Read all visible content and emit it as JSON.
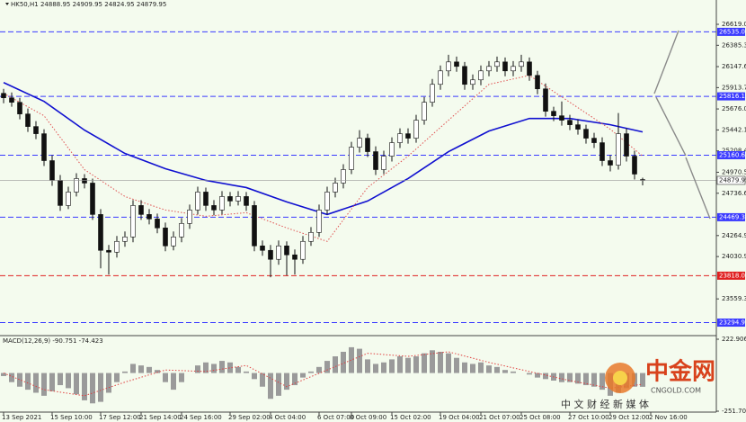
{
  "chart_data": [
    {
      "type": "candlestick",
      "title": "HK50,H1",
      "xlim": [
        0,
        88
      ],
      "xticks": [
        {
          "value": 0,
          "label": "13 Sep 2021"
        },
        {
          "value": 6,
          "label": "15 Sep 10:00"
        },
        {
          "value": 12,
          "label": "17 Sep 12:00"
        },
        {
          "value": 17,
          "label": "21 Sep 14:00"
        },
        {
          "value": 22,
          "label": "24 Sep 16:00"
        },
        {
          "value": 28,
          "label": "29 Sep 02:00"
        },
        {
          "value": 33,
          "label": "4 Oct 04:00"
        },
        {
          "value": 39,
          "label": "6 Oct 07:00"
        },
        {
          "value": 43,
          "label": "8 Oct 09:00"
        },
        {
          "value": 48,
          "label": "15 Oct 02:00"
        },
        {
          "value": 54,
          "label": "19 Oct 04:00"
        },
        {
          "value": 59,
          "label": "21 Oct 07:00"
        },
        {
          "value": 64,
          "label": "25 Oct 08:00"
        },
        {
          "value": 70,
          "label": "27 Oct 10:00"
        },
        {
          "value": 75,
          "label": "29 Oct 12:00"
        },
        {
          "value": 80,
          "label": "2 Nov 16:00"
        }
      ],
      "ylim": [
        23160,
        26890
      ],
      "yticks": [
        {
          "value": 26619,
          "label": "26619.00"
        },
        {
          "value": 26385.3,
          "label": "26385.30"
        },
        {
          "value": 26147.6,
          "label": "26147.60"
        },
        25913.7,
        {
          "value": 25676,
          "label": "25676.00"
        },
        25442.1,
        {
          "value": 25208.4,
          "label": "25208.40"
        },
        {
          "value": 24970.5,
          "label": "24970.50"
        },
        {
          "value": 24736.6,
          "label": "24736.60"
        },
        {
          "value": 24264.9,
          "label": "24264.90"
        },
        {
          "value": 24030.9,
          "label": "24030.90"
        },
        {
          "value": 23559.3,
          "label": "23559.30"
        }
      ],
      "ohlc": [
        [
          25850,
          25900,
          25740,
          25800
        ],
        [
          25800,
          25860,
          25700,
          25750
        ],
        [
          25750,
          25800,
          25560,
          25620
        ],
        [
          25620,
          25680,
          25420,
          25480
        ],
        [
          25480,
          25540,
          25340,
          25400
        ],
        [
          25400,
          25450,
          25040,
          25100
        ],
        [
          25100,
          25160,
          24820,
          24880
        ],
        [
          24880,
          24940,
          24540,
          24600
        ],
        [
          24600,
          24810,
          24560,
          24750
        ],
        [
          24750,
          24960,
          24700,
          24900
        ],
        [
          24900,
          24950,
          24790,
          24850
        ],
        [
          24850,
          24900,
          24440,
          24500
        ],
        [
          24500,
          24560,
          23900,
          24100
        ],
        [
          24100,
          24160,
          23830,
          24080
        ],
        [
          24080,
          24260,
          24020,
          24200
        ],
        [
          24200,
          24310,
          24140,
          24250
        ],
        [
          24250,
          24660,
          24190,
          24600
        ],
        [
          24600,
          24660,
          24440,
          24500
        ],
        [
          24500,
          24560,
          24390,
          24450
        ],
        [
          24450,
          24510,
          24290,
          24350
        ],
        [
          24350,
          24410,
          24090,
          24150
        ],
        [
          24150,
          24310,
          24100,
          24250
        ],
        [
          24250,
          24460,
          24190,
          24400
        ],
        [
          24400,
          24610,
          24340,
          24550
        ],
        [
          24550,
          24810,
          24500,
          24750
        ],
        [
          24750,
          24800,
          24540,
          24600
        ],
        [
          24600,
          24660,
          24490,
          24550
        ],
        [
          24550,
          24760,
          24500,
          24700
        ],
        [
          24700,
          24750,
          24590,
          24650
        ],
        [
          24650,
          24760,
          24600,
          24700
        ],
        [
          24700,
          24750,
          24540,
          24600
        ],
        [
          24600,
          24650,
          24090,
          24150
        ],
        [
          24150,
          24210,
          24040,
          24100
        ],
        [
          24100,
          24160,
          23800,
          24000
        ],
        [
          24000,
          24210,
          23940,
          24150
        ],
        [
          24150,
          24200,
          23820,
          24050
        ],
        [
          24050,
          24110,
          23830,
          24000
        ],
        [
          24000,
          24260,
          23950,
          24200
        ],
        [
          24200,
          24360,
          24150,
          24300
        ],
        [
          24300,
          24610,
          24250,
          24550
        ],
        [
          24550,
          24810,
          24500,
          24750
        ],
        [
          24750,
          24910,
          24690,
          24850
        ],
        [
          24850,
          25060,
          24790,
          25000
        ],
        [
          25000,
          25310,
          24950,
          25250
        ],
        [
          25250,
          25440,
          25190,
          25350
        ],
        [
          25350,
          25400,
          25140,
          25200
        ],
        [
          25200,
          25260,
          24940,
          25000
        ],
        [
          25000,
          25210,
          24950,
          25150
        ],
        [
          25150,
          25360,
          25090,
          25300
        ],
        [
          25300,
          25460,
          25240,
          25400
        ],
        [
          25400,
          25460,
          25290,
          25350
        ],
        [
          25350,
          25610,
          25300,
          25550
        ],
        [
          25550,
          25810,
          25500,
          25750
        ],
        [
          25750,
          26010,
          25700,
          25950
        ],
        [
          25950,
          26160,
          25890,
          26100
        ],
        [
          26100,
          26280,
          26040,
          26200
        ],
        [
          26200,
          26260,
          26090,
          26150
        ],
        [
          26150,
          26200,
          25890,
          25950
        ],
        [
          25950,
          26060,
          25890,
          26000
        ],
        [
          26000,
          26160,
          25940,
          26100
        ],
        [
          26100,
          26210,
          26040,
          26150
        ],
        [
          26150,
          26260,
          26090,
          26200
        ],
        [
          26200,
          26250,
          26040,
          26100
        ],
        [
          26100,
          26210,
          26040,
          26150
        ],
        [
          26150,
          26280,
          26090,
          26200
        ],
        [
          26200,
          26250,
          25990,
          26050
        ],
        [
          26050,
          26100,
          25840,
          25900
        ],
        [
          25900,
          25960,
          25590,
          25650
        ],
        [
          25650,
          25700,
          25540,
          25600
        ],
        [
          25600,
          25760,
          25490,
          25550
        ],
        [
          25550,
          25610,
          25440,
          25500
        ],
        [
          25500,
          25560,
          25390,
          25450
        ],
        [
          25450,
          25500,
          25290,
          25350
        ],
        [
          25350,
          25410,
          25240,
          25300
        ],
        [
          25300,
          25360,
          25040,
          25100
        ],
        [
          25100,
          25160,
          24980,
          25050
        ],
        [
          25050,
          25630,
          25000,
          25400
        ],
        [
          25400,
          25460,
          25090,
          25150
        ],
        [
          25150,
          25210,
          24890,
          24950
        ],
        [
          24888.95,
          24909.95,
          24824.95,
          24879.95
        ]
      ],
      "series": [
        {
          "color": "#1010d0",
          "dashed": false,
          "x": [
            0,
            5,
            10,
            15,
            20,
            25,
            30,
            35,
            40,
            45,
            50,
            55,
            60,
            65,
            70,
            75,
            79
          ],
          "values": [
            25970,
            25760,
            25440,
            25180,
            25010,
            24880,
            24800,
            24640,
            24500,
            24650,
            24900,
            25200,
            25430,
            25570,
            25570,
            25500,
            25420
          ]
        },
        {
          "color": "#e05050",
          "dashed": true,
          "x": [
            0,
            5,
            10,
            15,
            20,
            25,
            30,
            35,
            40,
            45,
            50,
            55,
            60,
            65,
            70,
            75,
            79
          ],
          "values": [
            25850,
            25600,
            25000,
            24700,
            24550,
            24480,
            24520,
            24350,
            24200,
            24800,
            25150,
            25550,
            25950,
            26050,
            25750,
            25450,
            25150
          ]
        }
      ],
      "levels": [
        {
          "value": 26535,
          "label": "26535.00",
          "color": "#3a3aff"
        },
        {
          "value": 25816.19,
          "label": "25816.19",
          "color": "#3a3aff"
        },
        {
          "value": 25160.63,
          "label": "25160.63",
          "color": "#3a3aff"
        },
        {
          "value": 24469.38,
          "label": "24469.38",
          "color": "#3a3aff"
        },
        {
          "value": 23818,
          "label": "23818.00",
          "color": "#e02020"
        },
        {
          "value": 23294.97,
          "label": "23294.97",
          "color": "#3a3aff"
        }
      ]
    },
    {
      "type": "macd",
      "title": "MACD(12,26,9)",
      "xlim": [
        0,
        88
      ],
      "ylim": [
        -251.706,
        222.906
      ],
      "yticks": [
        222.906,
        -251.706
      ],
      "color": "#9a9a9a",
      "values": [
        -20,
        -60,
        -90,
        -110,
        -130,
        -150,
        -120,
        -80,
        -100,
        -140,
        -180,
        -200,
        -190,
        -130,
        -60,
        10,
        60,
        50,
        40,
        20,
        -60,
        -110,
        -60,
        0,
        50,
        70,
        60,
        80,
        70,
        40,
        10,
        -40,
        -90,
        -170,
        -150,
        -110,
        -80,
        -30,
        10,
        40,
        80,
        110,
        140,
        170,
        160,
        90,
        60,
        70,
        90,
        110,
        100,
        110,
        130,
        150,
        140,
        130,
        100,
        70,
        60,
        70,
        50,
        40,
        20,
        10,
        0,
        -10,
        -30,
        -40,
        -50,
        -60,
        -60,
        -70,
        -80,
        -90,
        -110,
        -150,
        -130,
        -100,
        -90,
        -90.751
      ],
      "signal": {
        "color": "#e04040",
        "x": [
          0,
          5,
          10,
          15,
          20,
          25,
          30,
          35,
          40,
          45,
          50,
          55,
          60,
          65,
          70,
          75,
          79
        ],
        "values": [
          0,
          -110,
          -150,
          -60,
          20,
          10,
          50,
          -90,
          20,
          130,
          110,
          140,
          70,
          10,
          -50,
          -100,
          -74.423
        ]
      }
    }
  ],
  "watermark": {
    "name": "中金网",
    "domain": "CNGOLD.COM",
    "slogan": "中 文 财 经 新 媒 体"
  }
}
